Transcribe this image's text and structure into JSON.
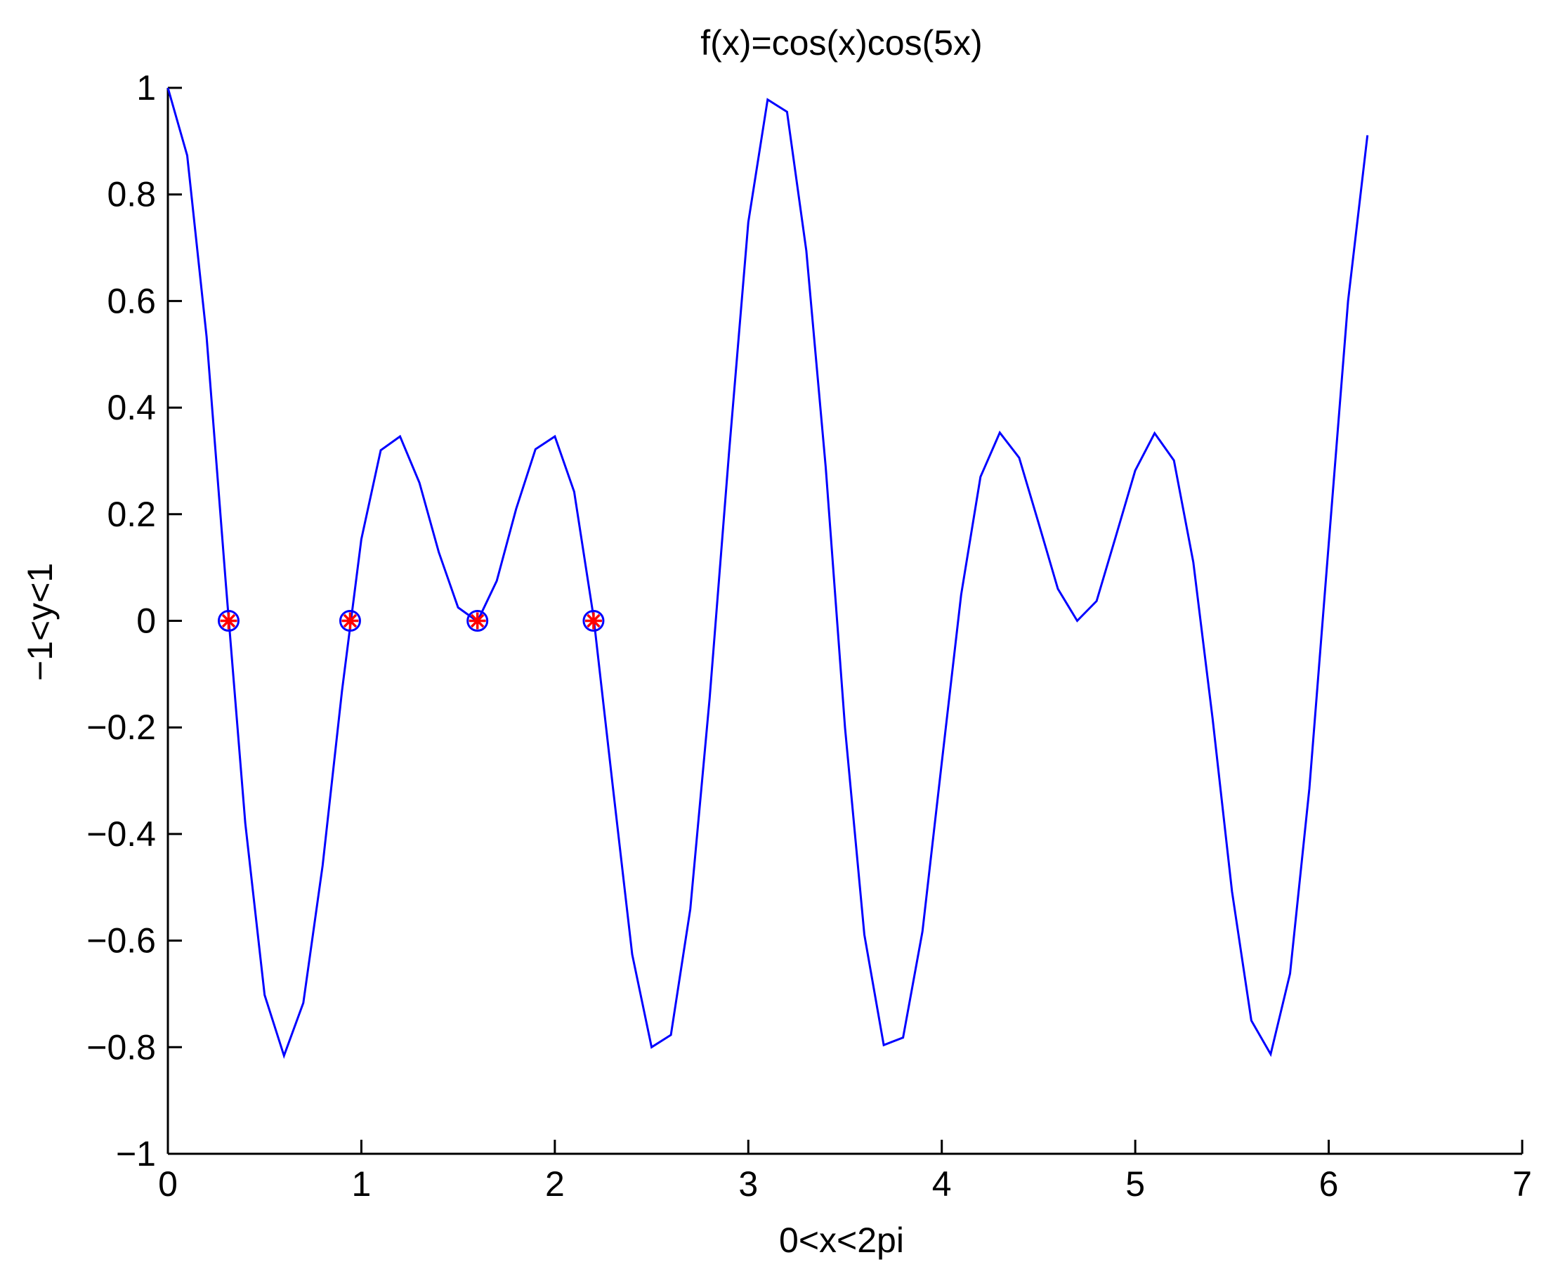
{
  "chart_data": {
    "type": "line",
    "title": "f(x)=cos(x)cos(5x)",
    "xlabel": "0<x<2pi",
    "ylabel": "−1<y<1",
    "xlim": [
      0,
      7
    ],
    "ylim": [
      -1,
      1
    ],
    "xticks": [
      0,
      1,
      2,
      3,
      4,
      5,
      6,
      7
    ],
    "xtick_labels": [
      "0",
      "1",
      "2",
      "3",
      "4",
      "5",
      "6",
      "7"
    ],
    "yticks": [
      -1,
      -0.8,
      -0.6,
      -0.4,
      -0.2,
      0,
      0.2,
      0.4,
      0.6,
      0.8,
      1
    ],
    "ytick_labels": [
      "−1",
      "−0.8",
      "−0.6",
      "−0.4",
      "−0.2",
      "0",
      "0.2",
      "0.4",
      "0.6",
      "0.8",
      "1"
    ],
    "grid": false,
    "series": [
      {
        "kind": "line",
        "color": "#0000ff",
        "x": [
          0,
          0.1,
          0.2,
          0.3,
          0.4,
          0.5,
          0.6,
          0.7,
          0.8,
          0.9,
          1.0,
          1.1,
          1.2,
          1.3,
          1.4,
          1.5,
          1.6,
          1.7,
          1.8,
          1.9,
          2.0,
          2.1,
          2.2,
          2.3,
          2.4,
          2.5,
          2.6,
          2.7,
          2.8,
          2.9,
          3.0,
          3.1,
          3.2,
          3.3,
          3.4,
          3.5,
          3.6,
          3.7,
          3.8,
          3.9,
          4.0,
          4.1,
          4.2,
          4.3,
          4.4,
          4.5,
          4.6,
          4.7,
          4.8,
          4.9,
          5.0,
          5.1,
          5.2,
          5.3,
          5.4,
          5.5,
          5.6,
          5.7,
          5.8,
          5.9,
          6.0,
          6.1,
          6.2
        ],
        "y": [
          1.0,
          0.873,
          0.533,
          0.068,
          -0.38,
          -0.702,
          -0.816,
          -0.717,
          -0.459,
          -0.131,
          0.153,
          0.32,
          0.346,
          0.259,
          0.129,
          0.025,
          -0.001,
          0.075,
          0.21,
          0.322,
          0.346,
          0.242,
          0.008,
          -0.312,
          -0.626,
          -0.8,
          -0.777,
          -0.541,
          -0.146,
          0.313,
          0.748,
          0.978,
          0.955,
          0.694,
          0.288,
          -0.201,
          -0.589,
          -0.796,
          -0.782,
          -0.583,
          -0.266,
          0.049,
          0.27,
          0.353,
          0.306,
          0.184,
          0.06,
          0.0,
          0.037,
          0.159,
          0.282,
          0.352,
          0.301,
          0.11,
          -0.184,
          -0.508,
          -0.75,
          -0.813,
          -0.662,
          -0.315,
          0.145,
          0.6,
          0.911
        ]
      },
      {
        "kind": "markers",
        "marker": "circle",
        "color": "#0000ff",
        "x": [
          0.314,
          0.942,
          1.6,
          2.2
        ],
        "y": [
          0,
          0,
          0,
          0
        ]
      },
      {
        "kind": "markers",
        "marker": "asterisk",
        "color": "#ff0000",
        "x": [
          0.314,
          0.942,
          1.6,
          2.2
        ],
        "y": [
          0,
          0,
          0,
          0
        ]
      }
    ]
  }
}
